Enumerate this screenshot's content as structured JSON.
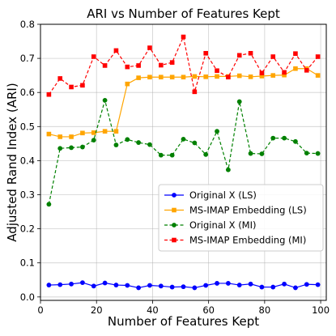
{
  "chart_data": {
    "type": "line",
    "title": "ARI vs Number of Features Kept",
    "xlabel": "Number of Features Kept",
    "ylabel": "Adjusted Rand Index (ARI)",
    "xlim": [
      0,
      102
    ],
    "ylim": [
      -0.01,
      0.8
    ],
    "xticks": [
      0,
      20,
      40,
      60,
      80,
      100
    ],
    "yticks": [
      0.0,
      0.1,
      0.2,
      0.3,
      0.4,
      0.5,
      0.6,
      0.7,
      0.8
    ],
    "grid": true,
    "legend_position": "lower-right",
    "x": [
      3,
      7,
      11,
      15,
      19,
      23,
      27,
      31,
      35,
      39,
      43,
      47,
      51,
      55,
      59,
      63,
      67,
      71,
      75,
      79,
      83,
      87,
      91,
      95,
      99
    ],
    "series": [
      {
        "name": "Original X (LS)",
        "color": "#0000ff",
        "marker": "circle",
        "linestyle": "solid",
        "values": [
          0.035,
          0.036,
          0.038,
          0.042,
          0.032,
          0.041,
          0.035,
          0.034,
          0.027,
          0.034,
          0.032,
          0.029,
          0.03,
          0.027,
          0.034,
          0.04,
          0.04,
          0.035,
          0.038,
          0.029,
          0.029,
          0.038,
          0.027,
          0.037,
          0.036
        ]
      },
      {
        "name": "MS-IMAP Embedding (LS)",
        "color": "#ffa500",
        "marker": "square",
        "linestyle": "solid",
        "values": [
          0.478,
          0.47,
          0.47,
          0.481,
          0.482,
          0.486,
          0.486,
          0.625,
          0.643,
          0.645,
          0.645,
          0.645,
          0.645,
          0.647,
          0.646,
          0.647,
          0.647,
          0.649,
          0.646,
          0.648,
          0.65,
          0.651,
          0.67,
          0.67,
          0.65
        ]
      },
      {
        "name": "Original X (MI)",
        "color": "#008000",
        "marker": "circle",
        "linestyle": "dashed",
        "values": [
          0.272,
          0.436,
          0.438,
          0.44,
          0.46,
          0.577,
          0.446,
          0.462,
          0.453,
          0.447,
          0.416,
          0.416,
          0.463,
          0.452,
          0.418,
          0.486,
          0.373,
          0.573,
          0.421,
          0.42,
          0.466,
          0.466,
          0.456,
          0.422,
          0.421
        ]
      },
      {
        "name": "MS-IMAP Embedding (MI)",
        "color": "#ff0000",
        "marker": "square",
        "linestyle": "dashed",
        "values": [
          0.594,
          0.641,
          0.616,
          0.621,
          0.705,
          0.679,
          0.723,
          0.675,
          0.679,
          0.731,
          0.68,
          0.688,
          0.763,
          0.602,
          0.715,
          0.664,
          0.645,
          0.709,
          0.715,
          0.657,
          0.705,
          0.659,
          0.714,
          0.665,
          0.705
        ]
      }
    ]
  }
}
